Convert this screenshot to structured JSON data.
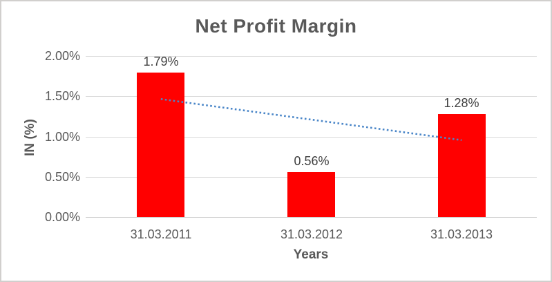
{
  "chart_data": {
    "type": "bar",
    "title": "Net Profit Margin",
    "xlabel": "Years",
    "ylabel": "IN (%)",
    "categories": [
      "31.03.2011",
      "31.03.2012",
      "31.03.2013"
    ],
    "series": [
      {
        "name": "Net Profit Margin",
        "values": [
          1.79,
          0.56,
          1.28
        ]
      }
    ],
    "data_labels": [
      "1.79%",
      "0.56%",
      "1.28%"
    ],
    "y_ticks": [
      {
        "label": "2.00%",
        "value": 2.0
      },
      {
        "label": "1.50%",
        "value": 1.5
      },
      {
        "label": "1.00%",
        "value": 1.0
      },
      {
        "label": "0.50%",
        "value": 0.5
      },
      {
        "label": "0.00%",
        "value": 0.0
      }
    ],
    "ylim": [
      0,
      2.0
    ],
    "grid": true,
    "legend": false,
    "trendline": {
      "type": "linear",
      "style": "dotted",
      "start_value": 1.465,
      "end_value": 0.955
    }
  },
  "colors": {
    "bar": "#FF0000",
    "trendline": "#4A86C8",
    "gridline": "#d9d9d9",
    "axis_line": "#cfcfcf",
    "tick_text": "#595959",
    "data_label_text": "#404040",
    "title_text": "#595959",
    "frame_border": "#d1cfcd"
  }
}
